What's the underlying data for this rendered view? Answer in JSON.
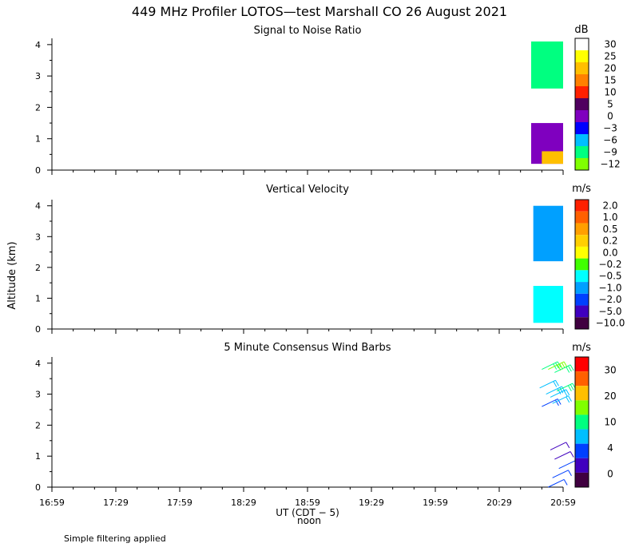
{
  "title": "449 MHz Profiler LOTOS—test Marshall CO 26 August 2021",
  "footnote": "Simple filtering applied",
  "chart_data": {
    "type": "heatmap",
    "ylabel": "Altitude (km)",
    "x_ticks": [
      "16:59",
      "17:29",
      "17:59",
      "18:29",
      "18:59",
      "19:29",
      "19:59",
      "20:29",
      "20:59"
    ],
    "x_range_minutes": [
      0,
      240
    ],
    "xlabel": "UT  (CDT − 5)",
    "x_sublabel": "noon",
    "y_ticks": [
      0,
      1,
      2,
      3,
      4
    ],
    "ylim": [
      0,
      4.2
    ],
    "panels": [
      {
        "title": "Signal to Noise Ratio",
        "unit": "dB",
        "colorbar_labels": [
          "30",
          "25",
          "20",
          "15",
          "10",
          "5",
          "0",
          "−3",
          "−6",
          "−9",
          "−12"
        ],
        "colorbar_colors": [
          "#ffffff",
          "#ffff00",
          "#ffbf00",
          "#ff8000",
          "#ff2000",
          "#50005f",
          "#7f00bf",
          "#0000ff",
          "#00bfff",
          "#00ff80",
          "#80ff00"
        ],
        "data": [
          {
            "t0": 225,
            "t1": 240,
            "z0": 0.2,
            "z1": 1.5,
            "level": "0"
          },
          {
            "t0": 230,
            "t1": 240,
            "z0": 0.2,
            "z1": 0.6,
            "level": "20"
          },
          {
            "t0": 225,
            "t1": 240,
            "z0": 2.6,
            "z1": 4.1,
            "level": "−9"
          }
        ]
      },
      {
        "title": "Vertical Velocity",
        "unit": "m/s",
        "colorbar_labels": [
          "2.0",
          "1.0",
          "0.5",
          "0.2",
          "0.0",
          "−0.2",
          "−0.5",
          "−1.0",
          "−2.0",
          "−5.0",
          "−10.0"
        ],
        "colorbar_colors": [
          "#ff2000",
          "#ff6000",
          "#ff9f00",
          "#ffcf00",
          "#ffff00",
          "#40ff00",
          "#00ffff",
          "#00a0ff",
          "#0040ff",
          "#4000bf",
          "#400040"
        ],
        "data": [
          {
            "t0": 226,
            "t1": 240,
            "z0": 0.2,
            "z1": 1.4,
            "level": "−0.5"
          },
          {
            "t0": 226,
            "t1": 240,
            "z0": 2.2,
            "z1": 4.0,
            "level": "−1.0"
          }
        ]
      },
      {
        "title": "5 Minute Consensus Wind Barbs",
        "unit": "m/s",
        "colorbar_labels": [
          "30",
          "20",
          "10",
          "4",
          "0"
        ],
        "colorbar_colors": [
          "#ff0000",
          "#ff6000",
          "#ffbf00",
          "#80ff00",
          "#00ff80",
          "#00bfff",
          "#0040ff",
          "#4000bf",
          "#400040"
        ],
        "barbs": [
          {
            "t": 230,
            "z": 3.8,
            "speed": 15
          },
          {
            "t": 233,
            "z": 3.8,
            "speed": 18
          },
          {
            "t": 236,
            "z": 3.7,
            "speed": 14
          },
          {
            "t": 229,
            "z": 3.2,
            "speed": 12
          },
          {
            "t": 232,
            "z": 3.0,
            "speed": 13
          },
          {
            "t": 234,
            "z": 2.9,
            "speed": 11
          },
          {
            "t": 237,
            "z": 3.1,
            "speed": 14
          },
          {
            "t": 230,
            "z": 2.6,
            "speed": 8
          },
          {
            "t": 235,
            "z": 2.7,
            "speed": 10
          },
          {
            "t": 234,
            "z": 1.2,
            "speed": 5
          },
          {
            "t": 236,
            "z": 0.9,
            "speed": 5
          },
          {
            "t": 238,
            "z": 0.6,
            "speed": 6
          },
          {
            "t": 235,
            "z": 0.3,
            "speed": 6
          },
          {
            "t": 233,
            "z": 0.0,
            "speed": 7
          }
        ]
      }
    ]
  }
}
